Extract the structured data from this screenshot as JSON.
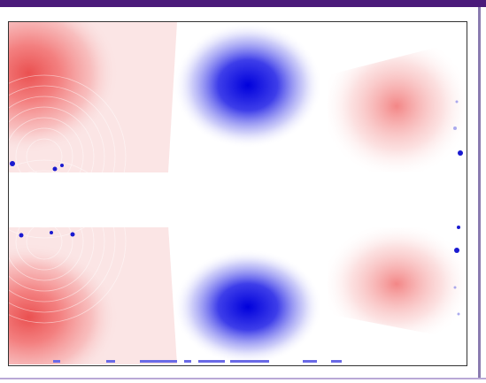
{
  "colors": {
    "top_bar": "#4b1a7a",
    "right_edge": "#8a7bb0",
    "bottom_line": "#b9a8d6",
    "frame_border": "#333333",
    "positive": "#e51a1a",
    "negative": "#1010e0",
    "neutral": "#ffffff"
  },
  "image": {
    "description_icon": "field-heatmap-icon"
  }
}
